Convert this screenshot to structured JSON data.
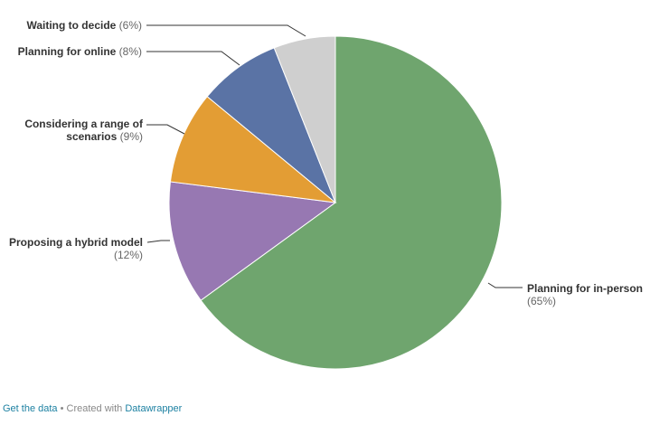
{
  "chart_data": {
    "type": "pie",
    "title": "",
    "start_angle_deg": 0,
    "direction": "clockwise",
    "slices": [
      {
        "label": "Planning for in-person",
        "value": 65,
        "value_label": "(65%)",
        "color": "#6fa56e"
      },
      {
        "label": "Proposing a hybrid model",
        "value": 12,
        "value_label": "(12%)",
        "color": "#9778b2"
      },
      {
        "label": "Considering a range of scenarios",
        "value": 9,
        "value_label": "(9%)",
        "color": "#e39d34"
      },
      {
        "label": "Planning for online",
        "value": 8,
        "value_label": "(8%)",
        "color": "#5a73a5"
      },
      {
        "label": "Waiting to decide",
        "value": 6,
        "value_label": "(6%)",
        "color": "#cfcfcf"
      }
    ]
  },
  "footer": {
    "get_data": "Get the data",
    "separator": "•",
    "created_with": "Created with",
    "datawrapper": "Datawrapper"
  }
}
